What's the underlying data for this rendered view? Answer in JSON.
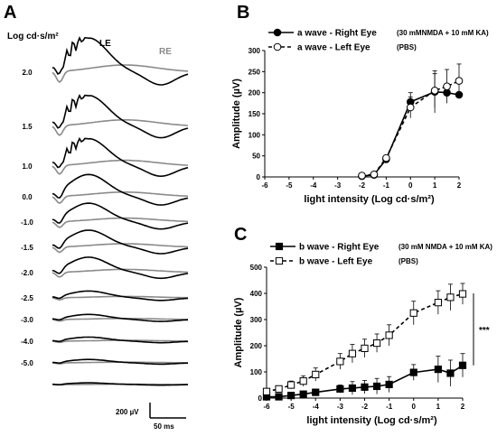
{
  "panel_a": {
    "label": "A",
    "intensity_header": "Log cd·s/m²",
    "le_label": "LE",
    "re_label": "RE",
    "intensity_rows": [
      "2.0",
      "1.5",
      "1.0",
      "0.0",
      "-1.0",
      "-1.5",
      "-2.0",
      "-2.5",
      "-3.0",
      "-4.0",
      "-5.0",
      ""
    ],
    "scale_amplitude": "200 µV",
    "scale_time": "50 ms",
    "colors": {
      "le": "#000000",
      "re": "#8a8a8a"
    }
  },
  "chart_data": [
    {
      "panel": "B",
      "type": "line",
      "ylabel": "Amplitude  (µV)",
      "xlabel": "light   intensity (Log cd·s/m²)",
      "xlim": [
        -6,
        2
      ],
      "ylim": [
        0,
        300
      ],
      "xticks": [
        "-6",
        "-5",
        "-4",
        "-3",
        "-2",
        "-1",
        "0",
        "1",
        "2"
      ],
      "yticks": [
        "0",
        "50",
        "100",
        "150",
        "200",
        "250",
        "300"
      ],
      "legend_position": "top",
      "series": [
        {
          "name": "a wave  -  Right Eye",
          "note": "(30 mMNMDA + 10 mM KA)",
          "style": "solid",
          "marker": "filled-circle",
          "color": "#000000",
          "x": [
            -2,
            -1.5,
            -1,
            0,
            1,
            1.5,
            2
          ],
          "y": [
            2,
            5,
            42,
            178,
            202,
            200,
            195
          ],
          "err": [
            0,
            0,
            5,
            22,
            50,
            0,
            0
          ]
        },
        {
          "name": "a wave  -  Left Eye",
          "note": "(PBS)",
          "style": "dashed",
          "marker": "open-circle",
          "color": "#000000",
          "x": [
            -2,
            -1.5,
            -1,
            0,
            1,
            1.5,
            2
          ],
          "y": [
            3,
            6,
            45,
            165,
            205,
            215,
            228
          ],
          "err": [
            0,
            0,
            5,
            25,
            40,
            40,
            40
          ]
        }
      ]
    },
    {
      "panel": "C",
      "type": "line",
      "ylabel": "Amplitude  (µV)",
      "xlabel": "light   intensity (Log cd·s/m²)",
      "xlim": [
        -6,
        2
      ],
      "ylim": [
        0,
        500
      ],
      "xticks": [
        "-6",
        "-5",
        "-4",
        "-3",
        "-2",
        "-1",
        "0",
        "1",
        "2"
      ],
      "yticks": [
        "0",
        "100",
        "200",
        "300",
        "400",
        "500"
      ],
      "legend_position": "top",
      "significance": "***",
      "series": [
        {
          "name": "b wave  -  Right Eye",
          "note": "(30 mM NMDA + 10 mM KA)",
          "style": "solid",
          "marker": "filled-square",
          "color": "#000000",
          "x": [
            -6,
            -5.5,
            -5,
            -4.5,
            -4,
            -3,
            -2.5,
            -2,
            -1.5,
            -1,
            0,
            1,
            1.5,
            2
          ],
          "y": [
            5,
            5,
            10,
            15,
            22,
            35,
            38,
            42,
            45,
            52,
            98,
            110,
            95,
            125
          ],
          "err": [
            5,
            5,
            5,
            8,
            10,
            15,
            25,
            25,
            30,
            30,
            30,
            50,
            50,
            45
          ]
        },
        {
          "name": "b wave  -  Left Eye",
          "note": "(PBS)",
          "style": "dashed",
          "marker": "open-square",
          "color": "#000000",
          "x": [
            -6,
            -5.5,
            -5,
            -4.5,
            -4,
            -3,
            -2.5,
            -2,
            -1.5,
            -1,
            0,
            1,
            1.5,
            2
          ],
          "y": [
            25,
            35,
            50,
            65,
            90,
            140,
            170,
            190,
            210,
            240,
            325,
            365,
            385,
            398
          ],
          "err": [
            10,
            12,
            15,
            20,
            25,
            30,
            35,
            35,
            35,
            40,
            45,
            45,
            50,
            40
          ]
        }
      ]
    }
  ]
}
